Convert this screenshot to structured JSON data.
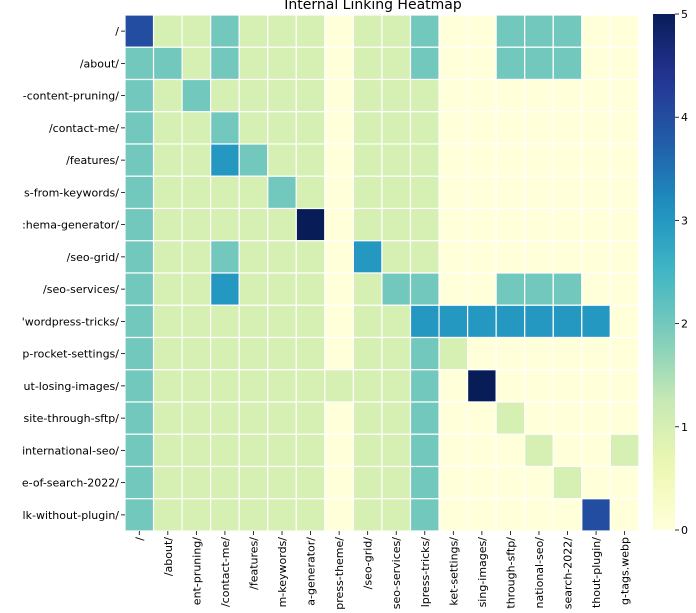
{
  "chart_data": {
    "type": "heatmap",
    "title": "Internal Linking Heatmap",
    "rows": [
      "/",
      "/about/",
      "-content-pruning/",
      "/contact-me/",
      "/features/",
      "s-from-keywords/",
      ":hema-generator/",
      "/seo-grid/",
      "/seo-services/",
      "'wordpress-tricks/",
      "p-rocket-settings/",
      "ut-losing-images/",
      "site-through-sftp/",
      "international-seo/",
      "e-of-search-2022/",
      "lk-without-plugin/"
    ],
    "columns": [
      "/",
      "/about/",
      "ent-pruning/",
      "/contact-me/",
      "/features/",
      "m-keywords/",
      "a-generator/",
      "press-theme/",
      "/seo-grid/",
      "seo-services/",
      "lpress-tricks/",
      "ket-settings/",
      "sing-images/",
      "through-sftp/",
      "national-seo/",
      "search-2022/",
      "thout-plugin/",
      "g-tags.webp"
    ],
    "values": [
      [
        4,
        1,
        1,
        2,
        1,
        1,
        1,
        0,
        1,
        1,
        2,
        0,
        0,
        2,
        2,
        2,
        0,
        0
      ],
      [
        2,
        2,
        1,
        2,
        1,
        1,
        1,
        0,
        1,
        1,
        2,
        0,
        0,
        2,
        2,
        2,
        0,
        0
      ],
      [
        2,
        1,
        2,
        1,
        1,
        1,
        1,
        0,
        1,
        1,
        1,
        0,
        0,
        0,
        0,
        0,
        0,
        0
      ],
      [
        2,
        1,
        1,
        2,
        1,
        1,
        1,
        0,
        1,
        1,
        1,
        0,
        0,
        0,
        0,
        0,
        0,
        0
      ],
      [
        2,
        1,
        1,
        3,
        2,
        1,
        1,
        0,
        1,
        1,
        1,
        0,
        0,
        0,
        0,
        0,
        0,
        0
      ],
      [
        2,
        1,
        1,
        1,
        1,
        2,
        1,
        0,
        1,
        1,
        1,
        0,
        0,
        0,
        0,
        0,
        0,
        0
      ],
      [
        2,
        1,
        1,
        1,
        1,
        1,
        5,
        0,
        1,
        1,
        1,
        0,
        0,
        0,
        0,
        0,
        0,
        0
      ],
      [
        2,
        1,
        1,
        2,
        1,
        1,
        1,
        0,
        3,
        1,
        1,
        0,
        0,
        0,
        0,
        0,
        0,
        0
      ],
      [
        2,
        1,
        1,
        3,
        1,
        1,
        1,
        0,
        1,
        2,
        2,
        0,
        0,
        2,
        2,
        2,
        0,
        0
      ],
      [
        2,
        1,
        1,
        1,
        1,
        1,
        1,
        0,
        1,
        1,
        3,
        3,
        3,
        3,
        3,
        3,
        3,
        0
      ],
      [
        2,
        1,
        1,
        1,
        1,
        1,
        1,
        0,
        1,
        1,
        2,
        1,
        0,
        0,
        0,
        0,
        0,
        0
      ],
      [
        2,
        1,
        1,
        1,
        1,
        1,
        1,
        1,
        1,
        1,
        2,
        0,
        5,
        0,
        0,
        0,
        0,
        0
      ],
      [
        2,
        1,
        1,
        1,
        1,
        1,
        1,
        0,
        1,
        1,
        2,
        0,
        0,
        1,
        0,
        0,
        0,
        0
      ],
      [
        2,
        1,
        1,
        1,
        1,
        1,
        1,
        0,
        1,
        1,
        2,
        0,
        0,
        0,
        1,
        0,
        0,
        1
      ],
      [
        2,
        1,
        1,
        1,
        1,
        1,
        1,
        0,
        1,
        1,
        2,
        0,
        0,
        0,
        0,
        1,
        0,
        0
      ],
      [
        2,
        1,
        1,
        1,
        1,
        1,
        1,
        0,
        1,
        1,
        2,
        0,
        0,
        0,
        0,
        0,
        4,
        0
      ]
    ],
    "vmin": 0,
    "vmax": 5,
    "colorbar_ticks": [
      "0",
      "1",
      "2",
      "3",
      "4",
      "5"
    ],
    "colormap": "YlGnBu",
    "grid": true,
    "legend": "colorbar-right"
  }
}
